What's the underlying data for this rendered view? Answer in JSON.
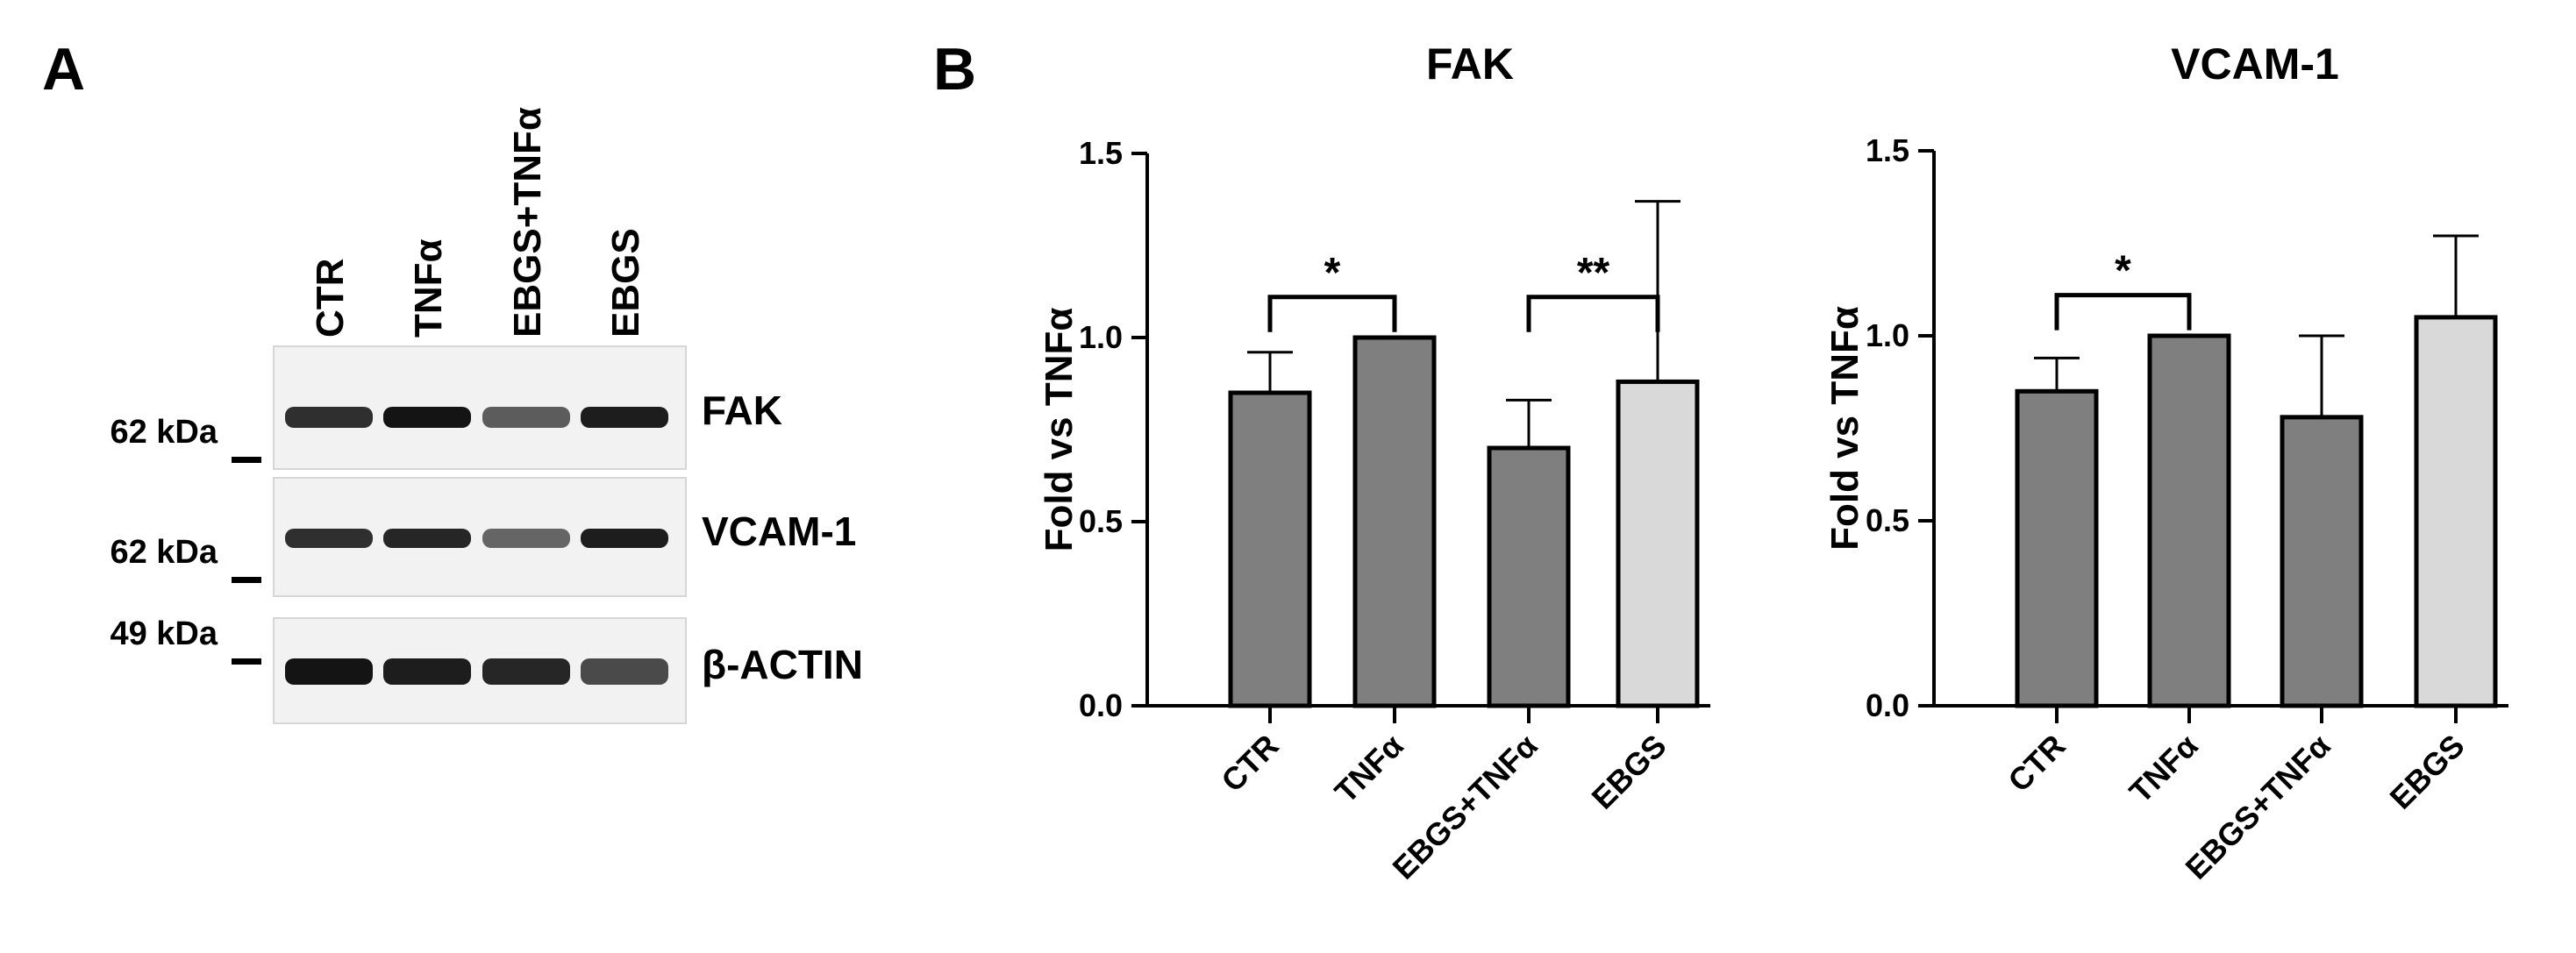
{
  "panel_a": {
    "letter": "A",
    "lanes": [
      "CTR",
      "TNFα",
      "EBGS+TNFα",
      "EBGS"
    ],
    "blots": [
      {
        "protein": "FAK",
        "kda": "62 kDa",
        "intensity": [
          0.85,
          1.0,
          0.6,
          0.95
        ]
      },
      {
        "protein": "VCAM-1",
        "kda": "62 kDa",
        "intensity": [
          0.85,
          0.9,
          0.55,
          0.95
        ]
      },
      {
        "protein": "β-ACTIN",
        "kda": "49 kDa",
        "intensity": [
          1.0,
          0.95,
          0.9,
          0.7
        ]
      }
    ]
  },
  "panel_b": {
    "letter": "B"
  },
  "colors": {
    "dark_bar": "#7f7f7f",
    "light_bar": "#d9d9d9",
    "edge": "#000000"
  },
  "chart_data": [
    {
      "type": "bar",
      "title": "FAK",
      "ylabel": "Fold vs TNFα",
      "xlabel": "",
      "categories": [
        "CTR",
        "TNFα",
        "EBGS+TNFα",
        "EBGS"
      ],
      "values": [
        0.85,
        1.0,
        0.7,
        0.88
      ],
      "errors": [
        0.11,
        0.0,
        0.13,
        0.49
      ],
      "bar_colors": [
        "#7f7f7f",
        "#7f7f7f",
        "#7f7f7f",
        "#d9d9d9"
      ],
      "ylim": [
        0,
        1.5
      ],
      "yticks": [
        "0.0",
        "0.5",
        "1.0",
        "1.5"
      ],
      "significance": [
        {
          "from": 0,
          "to": 1,
          "label": "*"
        },
        {
          "from": 2,
          "to": 3,
          "label": "**"
        }
      ]
    },
    {
      "type": "bar",
      "title": "VCAM-1",
      "ylabel": "Fold vs TNFα",
      "xlabel": "",
      "categories": [
        "CTR",
        "TNFα",
        "EBGS+TNFα",
        "EBGS"
      ],
      "values": [
        0.85,
        1.0,
        0.78,
        1.05
      ],
      "errors": [
        0.09,
        0.0,
        0.22,
        0.22
      ],
      "bar_colors": [
        "#7f7f7f",
        "#7f7f7f",
        "#7f7f7f",
        "#d9d9d9"
      ],
      "ylim": [
        0,
        1.5
      ],
      "yticks": [
        "0.0",
        "0.5",
        "1.0",
        "1.5"
      ],
      "significance": [
        {
          "from": 0,
          "to": 1,
          "label": "*"
        }
      ]
    }
  ]
}
